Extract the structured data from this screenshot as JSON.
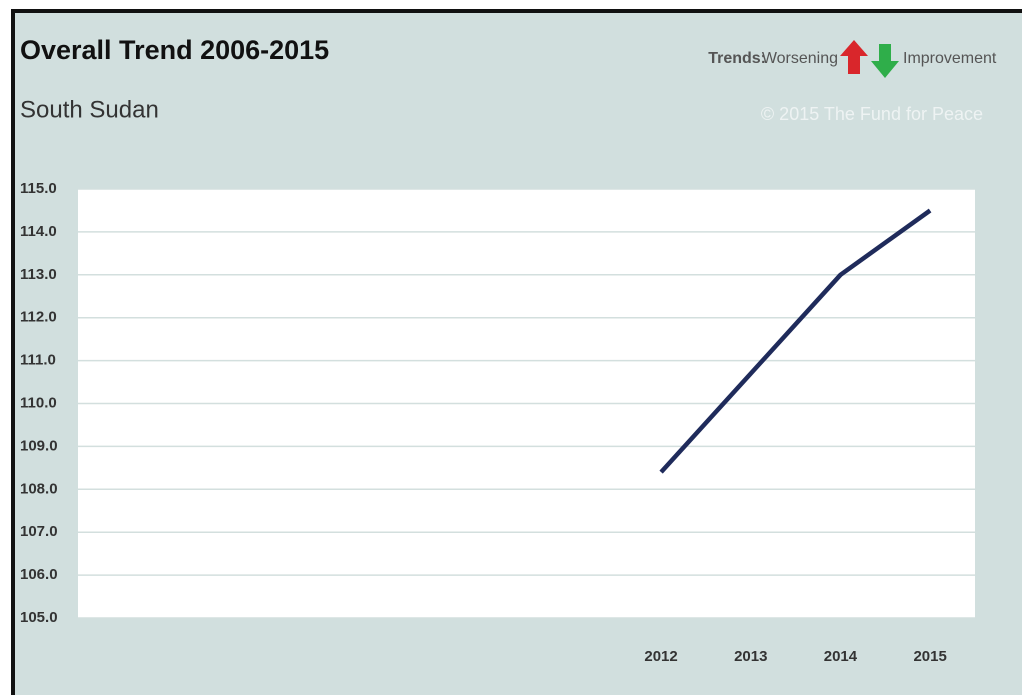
{
  "chart_data": {
    "type": "line",
    "title": "Overall Trend 2006-2015",
    "subtitle": "South Sudan",
    "legend_title": "Trends:",
    "legend_worsening": "Worsening",
    "legend_improvement": "Improvement",
    "copyright": "© 2015 The Fund for Peace",
    "categories": [
      null,
      null,
      null,
      null,
      null,
      null,
      "2012",
      "2013",
      "2014",
      "2015"
    ],
    "values": [
      null,
      null,
      null,
      null,
      null,
      null,
      108.4,
      110.7,
      113.0,
      114.5
    ],
    "color": "#1f2b5b",
    "ylim": [
      105,
      115
    ],
    "yticks": [
      {
        "value": 105,
        "label": "105.0"
      },
      {
        "value": 106,
        "label": "106.0"
      },
      {
        "value": 107,
        "label": "107.0"
      },
      {
        "value": 108,
        "label": "108.0"
      },
      {
        "value": 109,
        "label": "109.0"
      },
      {
        "value": 110,
        "label": "110.0"
      },
      {
        "value": 111,
        "label": "111.0"
      },
      {
        "value": 112,
        "label": "112.0"
      },
      {
        "value": 113,
        "label": "113.0"
      },
      {
        "value": 114,
        "label": "114.0"
      },
      {
        "value": 115,
        "label": "115.0"
      }
    ],
    "grid": true
  }
}
